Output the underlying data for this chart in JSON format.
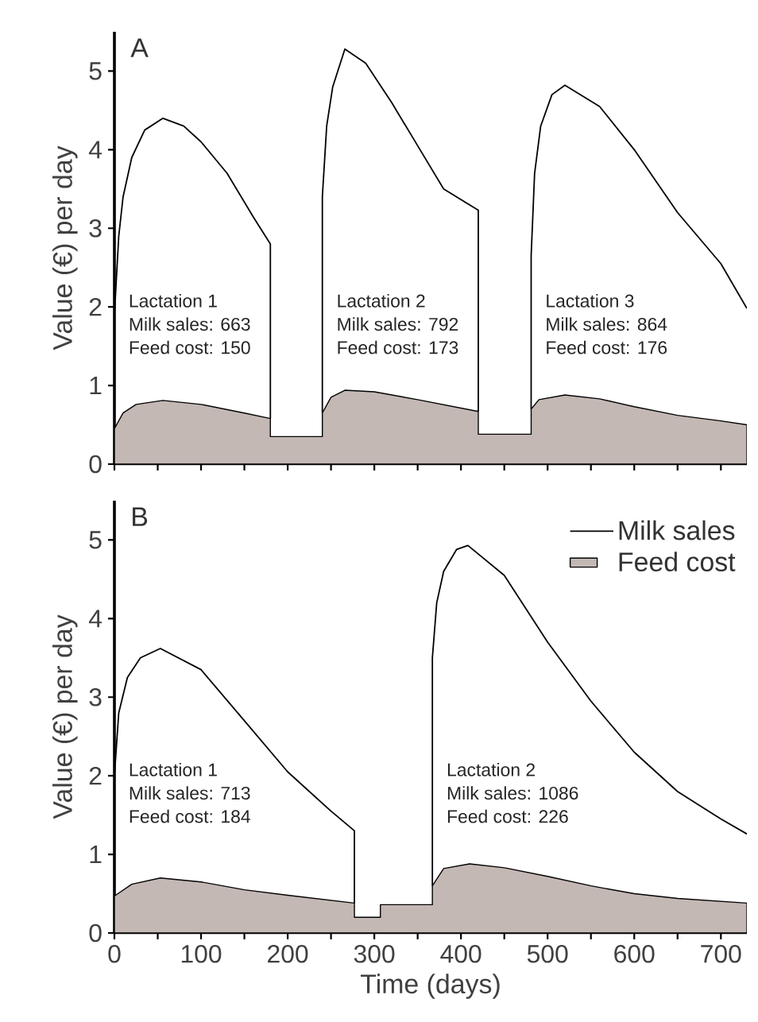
{
  "chart_data": [
    {
      "type": "line",
      "ylabel": "Value (€) per day",
      "xlim": [
        0,
        730
      ],
      "ylim": [
        0,
        5.5
      ],
      "tick_labels": "y",
      "xticks": [
        {
          "value": 0,
          "label": null
        },
        {
          "value": 50,
          "label": null
        },
        {
          "value": 100,
          "label": null
        },
        {
          "value": 150,
          "label": null
        },
        {
          "value": 200,
          "label": null
        },
        {
          "value": 250,
          "label": null
        },
        {
          "value": 300,
          "label": null
        },
        {
          "value": 350,
          "label": null
        },
        {
          "value": 400,
          "label": null
        },
        {
          "value": 450,
          "label": null
        },
        {
          "value": 500,
          "label": null
        },
        {
          "value": 550,
          "label": null
        },
        {
          "value": 600,
          "label": null
        },
        {
          "value": 650,
          "label": null
        },
        {
          "value": 700,
          "label": null
        }
      ],
      "yticks": [
        0,
        1,
        2,
        3,
        4,
        5
      ],
      "series": [
        {
          "color": "#000000",
          "x": [
            0,
            5,
            10,
            20,
            35,
            56,
            80,
            100,
            130,
            160,
            180,
            180,
            210,
            240,
            240,
            245,
            252,
            266,
            290,
            320,
            350,
            380,
            420,
            420,
            450,
            481,
            481,
            485,
            492,
            505,
            520,
            560,
            600,
            650,
            700,
            730
          ],
          "values": [
            1.9,
            2.9,
            3.4,
            3.9,
            4.25,
            4.4,
            4.3,
            4.1,
            3.7,
            3.15,
            2.8,
            0.58,
            null,
            0.65,
            3.4,
            4.3,
            4.8,
            5.28,
            5.1,
            4.6,
            4.05,
            3.5,
            3.23,
            0.67,
            null,
            0.7,
            2.65,
            3.7,
            4.3,
            4.7,
            4.82,
            4.55,
            4.0,
            3.2,
            2.55,
            1.98
          ]
        },
        {
          "type": "area",
          "color": "#c4b8b4",
          "x": [
            0,
            10,
            25,
            56,
            100,
            150,
            180,
            180,
            240,
            240,
            250,
            266,
            300,
            350,
            420,
            420,
            481,
            481,
            490,
            520,
            560,
            600,
            650,
            700,
            730
          ],
          "values": [
            0.45,
            0.65,
            0.76,
            0.81,
            0.76,
            0.65,
            0.58,
            0.35,
            0.35,
            0.65,
            0.85,
            0.94,
            0.92,
            0.82,
            0.67,
            0.38,
            0.38,
            0.7,
            0.82,
            0.88,
            0.83,
            0.73,
            0.62,
            0.55,
            0.5
          ]
        }
      ],
      "annotations": [
        "A",
        "Lactation 1",
        "Milk sales: 663",
        "Feed cost: 150",
        "Lactation 2",
        "Milk sales: 792",
        "Feed cost: 173",
        "Lactation 3",
        "Milk sales: 864",
        "Feed cost: 176"
      ]
    },
    {
      "type": "line",
      "ylabel": "Value (€) per day",
      "xlabel": "Time (days)",
      "xlim": [
        0,
        730
      ],
      "ylim": [
        0,
        5.5
      ],
      "legend": "top right",
      "xticks": [
        0,
        {
          "value": 50,
          "label": null
        },
        100,
        {
          "value": 150,
          "label": null
        },
        200,
        {
          "value": 250,
          "label": null
        },
        300,
        {
          "value": 350,
          "label": null
        },
        400,
        {
          "value": 450,
          "label": null
        },
        500,
        {
          "value": 550,
          "label": null
        },
        600,
        {
          "value": 650,
          "label": null
        },
        700
      ],
      "yticks": [
        0,
        1,
        2,
        3,
        4,
        5
      ],
      "series": [
        {
          "name": "Milk sales",
          "color": "#000000",
          "x": [
            0,
            5,
            15,
            30,
            53,
            100,
            150,
            200,
            250,
            277,
            277,
            320,
            367,
            367,
            372,
            380,
            395,
            408,
            450,
            500,
            550,
            600,
            650,
            700,
            730
          ],
          "values": [
            2.0,
            2.8,
            3.25,
            3.5,
            3.62,
            3.35,
            2.7,
            2.05,
            1.55,
            1.3,
            0.38,
            null,
            0.6,
            3.5,
            4.2,
            4.6,
            4.88,
            4.93,
            4.55,
            3.7,
            2.95,
            2.3,
            1.8,
            1.45,
            1.26
          ]
        },
        {
          "name": "Feed cost",
          "type": "area",
          "color": "#c4b8b4",
          "x": [
            0,
            20,
            53,
            100,
            150,
            200,
            277,
            277,
            307,
            307,
            367,
            367,
            380,
            410,
            450,
            500,
            550,
            600,
            650,
            730
          ],
          "values": [
            0.47,
            0.62,
            0.7,
            0.65,
            0.55,
            0.48,
            0.38,
            0.2,
            0.2,
            0.36,
            0.36,
            0.6,
            0.82,
            0.88,
            0.83,
            0.72,
            0.6,
            0.5,
            0.44,
            0.38
          ]
        }
      ],
      "annotations": [
        "B",
        "Lactation 1",
        "Milk sales: 713",
        "Feed cost: 184",
        "Lactation 2",
        "Milk sales: 1086",
        "Feed cost: 226"
      ]
    }
  ]
}
